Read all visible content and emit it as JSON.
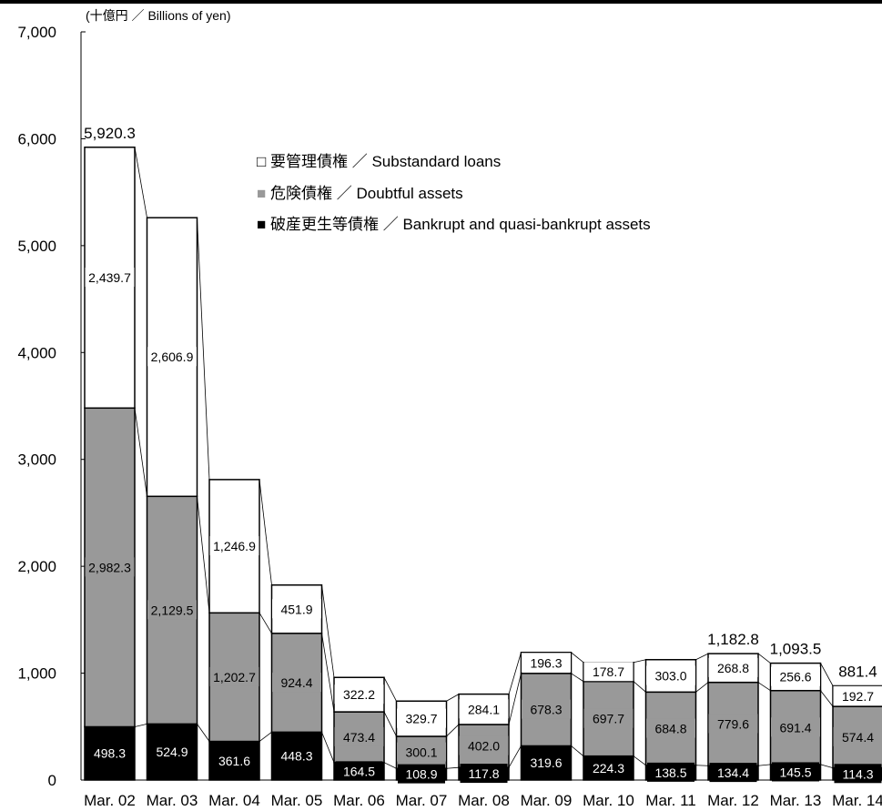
{
  "chart_data": {
    "type": "bar",
    "stacked": true,
    "unit_label": "(十億円 ／ Billions of yen)",
    "ylim": [
      0,
      7000
    ],
    "y_ticks": [
      0,
      1000,
      2000,
      3000,
      4000,
      5000,
      6000,
      7000
    ],
    "y_tick_labels": [
      "0",
      "1,000",
      "2,000",
      "3,000",
      "4,000",
      "5,000",
      "6,000",
      "7,000"
    ],
    "categories": [
      "Mar. 02",
      "Mar. 03",
      "Mar. 04",
      "Mar. 05",
      "Mar. 06",
      "Mar. 07",
      "Mar. 08",
      "Mar. 09",
      "Mar. 10",
      "Mar. 11",
      "Mar. 12",
      "Mar. 13",
      "Mar. 14"
    ],
    "series": [
      {
        "name": "破産更生等債権 ／ Bankrupt and quasi-bankrupt assets",
        "color": "#000000",
        "label_color": "#ffffff",
        "values": [
          498.3,
          524.9,
          361.6,
          448.3,
          164.5,
          108.9,
          117.8,
          319.6,
          224.3,
          138.5,
          134.4,
          145.5,
          114.3
        ],
        "labels": [
          "498.3",
          "524.9",
          "361.6",
          "448.3",
          "164.5",
          "108.9",
          "117.8",
          "319.6",
          "224.3",
          "138.5",
          "134.4",
          "145.5",
          "114.3"
        ]
      },
      {
        "name": "危険債権 ／ Doubtful assets",
        "color": "#999999",
        "label_color": "#000000",
        "values": [
          2982.3,
          2129.5,
          1202.7,
          924.4,
          473.4,
          300.1,
          402.0,
          678.3,
          697.7,
          684.8,
          779.6,
          691.4,
          574.4
        ],
        "labels": [
          "2,982.3",
          "2,129.5",
          "1,202.7",
          "924.4",
          "473.4",
          "300.1",
          "402.0",
          "678.3",
          "697.7",
          "684.8",
          "779.6",
          "691.4",
          "574.4"
        ]
      },
      {
        "name": "要管理債権 ／ Substandard loans",
        "color": "#ffffff",
        "label_color": "#000000",
        "values": [
          2439.7,
          2606.9,
          1246.9,
          451.9,
          322.2,
          329.7,
          284.1,
          196.3,
          178.7,
          303.0,
          268.8,
          256.6,
          192.7
        ],
        "labels": [
          "2,439.7",
          "2,606.9",
          "1,246.9",
          "451.9",
          "322.2",
          "329.7",
          "284.1",
          "196.3",
          "178.7",
          "303.0",
          "268.8",
          "256.6",
          "192.7"
        ]
      }
    ],
    "total_labels": [
      "5,920.3",
      "",
      "",
      "",
      "",
      "",
      "",
      "",
      "",
      "",
      "1,182.8",
      "1,093.5",
      "881.4"
    ],
    "legend": {
      "position": "top-center",
      "items": [
        {
          "marker": "□",
          "text": "要管理債権 ／ Substandard loans"
        },
        {
          "marker": "■",
          "text": "危険債権 ／ Doubtful assets",
          "marker_color": "#999999"
        },
        {
          "marker": "■",
          "text": "破産更生等債権 ／ Bankrupt and quasi-bankrupt assets",
          "marker_color": "#000000"
        }
      ]
    },
    "connector_lines": true,
    "grid": false
  }
}
